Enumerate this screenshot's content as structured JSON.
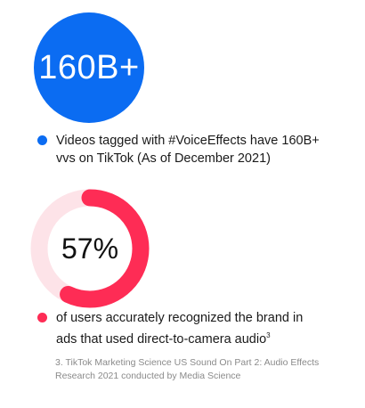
{
  "chart_data": [
    {
      "type": "stat",
      "value_text": "160B+",
      "legend": "Videos tagged with #VoiceEffects have 160B+ vvs on TikTok (As of December 2021)"
    },
    {
      "type": "pie",
      "value_text": "57%",
      "values": [
        57,
        43
      ],
      "legend": "of users accurately recognized the brand in ads that used direct-to-camera audio",
      "legend_sup": "3"
    }
  ],
  "footnote": "3. TikTok Marketing Science US Sound On Part 2: Audio Effects Research 2021 conducted by Media Science",
  "colors": {
    "blue": "#0b6cf2",
    "pink": "#fe2c55",
    "pink_light": "#fde3e8"
  }
}
